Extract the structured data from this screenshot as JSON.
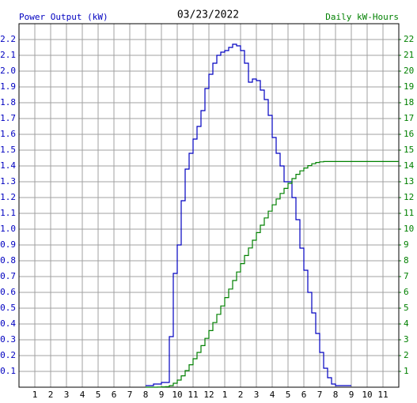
{
  "chart_data": {
    "type": "step",
    "title": "03/23/2022",
    "ylabel": "Power Output (kW)",
    "y2label": "Daily kW-Hours",
    "x": [
      8,
      8.25,
      8.5,
      8.75,
      9,
      9.25,
      9.5,
      9.75,
      10,
      10.25,
      10.5,
      10.75,
      11,
      11.25,
      11.5,
      11.75,
      12,
      12.25,
      12.5,
      12.75,
      13,
      13.25,
      13.5,
      13.75,
      14,
      14.25,
      14.5,
      14.75,
      15,
      15.25,
      15.5,
      15.75,
      16,
      16.25,
      16.5,
      16.75,
      17,
      17.25,
      17.5,
      17.75,
      18,
      18.25,
      18.5,
      18.75,
      19,
      19.25,
      19.5,
      19.75,
      20,
      20.25,
      20.5,
      20.75,
      21,
      24
    ],
    "series": [
      {
        "name": "Power Output (kW)",
        "color": "#0000c0",
        "values": [
          0.01,
          0.01,
          0.02,
          0.02,
          0.03,
          0.03,
          0.32,
          0.72,
          0.9,
          1.18,
          1.38,
          1.48,
          1.57,
          1.65,
          1.75,
          1.89,
          1.98,
          2.05,
          2.1,
          2.12,
          2.13,
          2.15,
          2.17,
          2.16,
          2.13,
          2.05,
          1.93,
          1.95,
          1.94,
          1.88,
          1.82,
          1.72,
          1.58,
          1.48,
          1.4,
          1.3,
          1.3,
          1.2,
          1.06,
          0.88,
          0.74,
          0.6,
          0.47,
          0.34,
          0.22,
          0.12,
          0.06,
          0.02,
          0.01,
          0.01,
          0.01,
          0.01,
          0.01,
          null
        ]
      },
      {
        "name": "Daily kW-Hours",
        "color": "#008000",
        "axis": "y2",
        "values": [
          0,
          0,
          0,
          0.01,
          0.02,
          0.03,
          0.1,
          0.25,
          0.45,
          0.72,
          1.05,
          1.42,
          1.8,
          2.2,
          2.63,
          3.09,
          3.58,
          4.09,
          4.61,
          5.14,
          5.67,
          6.21,
          6.75,
          7.29,
          7.82,
          8.33,
          8.81,
          9.3,
          9.78,
          10.25,
          10.71,
          11.14,
          11.54,
          11.91,
          12.26,
          12.58,
          12.9,
          13.2,
          13.47,
          13.69,
          13.87,
          14.02,
          14.14,
          14.22,
          14.26,
          14.28,
          14.28,
          14.28,
          14.28,
          14.28,
          14.28,
          14.28,
          14.28,
          14.28
        ]
      }
    ],
    "xlim": [
      0,
      24
    ],
    "xticks": [
      1,
      2,
      3,
      4,
      5,
      6,
      7,
      8,
      9,
      10,
      11,
      12,
      {
        "value": 13,
        "label": "1"
      },
      {
        "value": 14,
        "label": "2"
      },
      {
        "value": 15,
        "label": "3"
      },
      {
        "value": 16,
        "label": "4"
      },
      {
        "value": 17,
        "label": "5"
      },
      {
        "value": 18,
        "label": "6"
      },
      {
        "value": 19,
        "label": "7"
      },
      {
        "value": 20,
        "label": "8"
      },
      {
        "value": 21,
        "label": "9"
      },
      {
        "value": 22,
        "label": "10"
      },
      {
        "value": 23,
        "label": "11"
      }
    ],
    "ylim": [
      0,
      2.3
    ],
    "yticks": [
      0.1,
      0.2,
      0.3,
      0.4,
      0.5,
      0.6,
      0.7,
      0.8,
      0.9,
      {
        "value": 1,
        "label": "1.0"
      },
      1.1,
      1.2,
      1.3,
      1.4,
      1.5,
      1.6,
      1.7,
      1.8,
      1.9,
      {
        "value": 2,
        "label": "2.0"
      },
      2.1,
      2.2
    ],
    "y2lim": [
      0,
      23
    ],
    "y2ticks": [
      1,
      2,
      3,
      4,
      5,
      6,
      7,
      8,
      9,
      10,
      11,
      12,
      13,
      14,
      15,
      16,
      17,
      18,
      19,
      20,
      21,
      22
    ],
    "grid": true
  }
}
